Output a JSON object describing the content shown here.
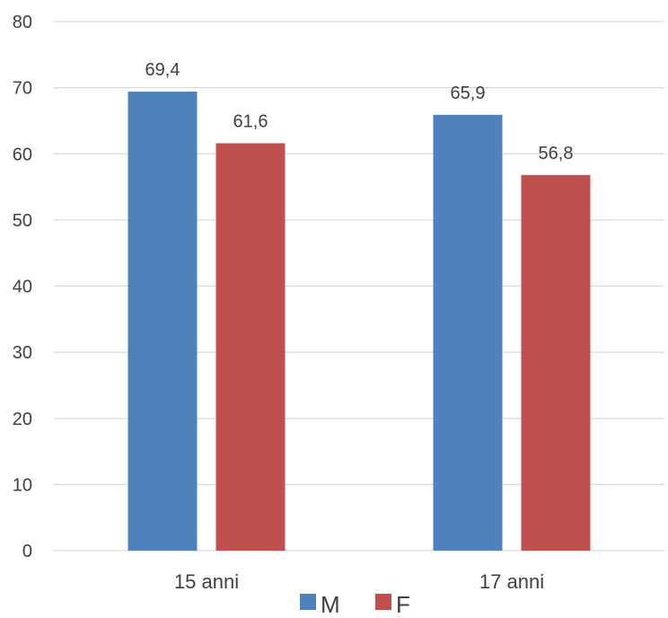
{
  "chart_data": {
    "type": "bar",
    "categories": [
      "15 anni",
      "17 anni"
    ],
    "series": [
      {
        "name": "M",
        "values": [
          69.4,
          65.9
        ],
        "labels": [
          "69,4",
          "65,9"
        ],
        "color": "#4F81BD"
      },
      {
        "name": "F",
        "values": [
          61.6,
          56.8
        ],
        "labels": [
          "61,6",
          "56,8"
        ],
        "color": "#C0504D"
      }
    ],
    "ylim": [
      0,
      80
    ],
    "yticks": [
      0,
      10,
      20,
      30,
      40,
      50,
      60,
      70,
      80
    ],
    "grid": true,
    "legend_position": "bottom",
    "title": "",
    "xlabel": "",
    "ylabel": ""
  },
  "colors": {
    "grid": "#D9D9D9",
    "text": "#404040"
  }
}
